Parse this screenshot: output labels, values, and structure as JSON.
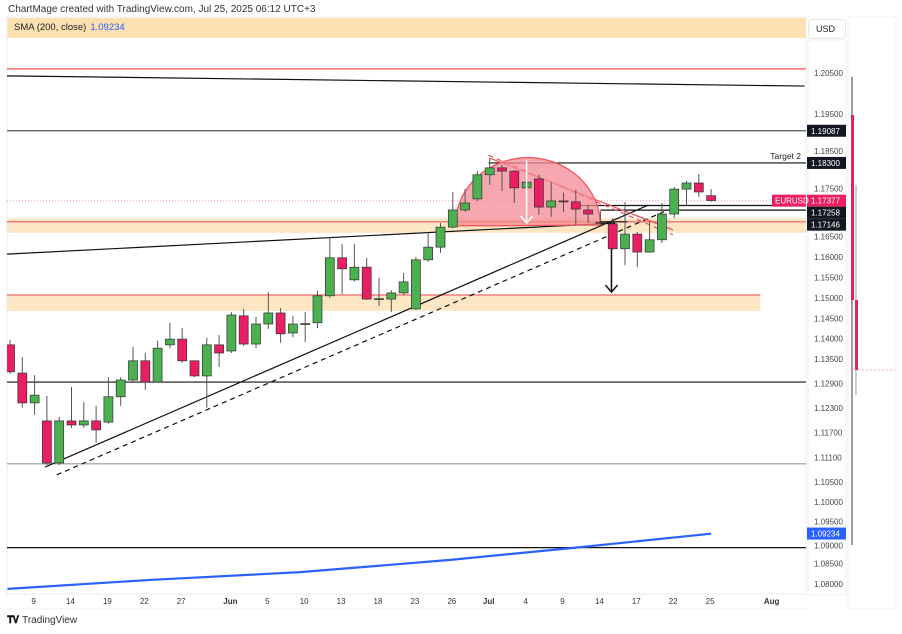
{
  "header": {
    "credit": "ChartMage created with TradingView.com, Jul 25, 2025 06:12 UTC+3",
    "indicator_label": "SMA (200, close)",
    "indicator_value": "1.09234",
    "currency": "USD"
  },
  "footer": {
    "brand": "TradingView",
    "logo": "TV"
  },
  "colors": {
    "up": "#4caf50",
    "down": "#e91e63",
    "sma": "#2962ff",
    "zone": "#fde6c4",
    "zone_line": "#f07f7f",
    "cup": "#f48a96",
    "price_tag": "#e91e63"
  },
  "chart_data": {
    "type": "candlestick",
    "symbol": "EURUSD",
    "ylim": [
      1.0775,
      1.2125
    ],
    "y_ticks": [
      "1.20500",
      "1.19500",
      "1.18500",
      "1.17500",
      "1.16500",
      "1.16000",
      "1.15500",
      "1.15000",
      "1.14500",
      "1.14000",
      "1.13500",
      "1.12900",
      "1.12300",
      "1.11700",
      "1.11100",
      "1.10500",
      "1.10000",
      "1.09500",
      "1.09000",
      "1.08500",
      "1.08000"
    ],
    "x_ticks": [
      {
        "label": "9",
        "bar": 2
      },
      {
        "label": "14",
        "bar": 5
      },
      {
        "label": "19",
        "bar": 8
      },
      {
        "label": "22",
        "bar": 11
      },
      {
        "label": "27",
        "bar": 14
      },
      {
        "label": "Jun",
        "bar": 18,
        "bold": true
      },
      {
        "label": "5",
        "bar": 21
      },
      {
        "label": "10",
        "bar": 24
      },
      {
        "label": "13",
        "bar": 27
      },
      {
        "label": "18",
        "bar": 30
      },
      {
        "label": "23",
        "bar": 33
      },
      {
        "label": "26",
        "bar": 36
      },
      {
        "label": "Jul",
        "bar": 39,
        "bold": true
      },
      {
        "label": "4",
        "bar": 42
      },
      {
        "label": "9",
        "bar": 45
      },
      {
        "label": "14",
        "bar": 48
      },
      {
        "label": "17",
        "bar": 51
      },
      {
        "label": "22",
        "bar": 54
      },
      {
        "label": "25",
        "bar": 57
      },
      {
        "label": "Aug",
        "bar": 62,
        "bold": true
      }
    ],
    "candles_ohlc": [
      [
        1.1385,
        1.1397,
        1.1314,
        1.1319
      ],
      [
        1.1316,
        1.1355,
        1.1231,
        1.1243
      ],
      [
        1.1243,
        1.1311,
        1.1214,
        1.1262
      ],
      [
        1.1199,
        1.126,
        1.1091,
        1.1096
      ],
      [
        1.1096,
        1.1209,
        1.1091,
        1.1199
      ],
      [
        1.1199,
        1.1282,
        1.1182,
        1.1189
      ],
      [
        1.1189,
        1.1245,
        1.1182,
        1.1199
      ],
      [
        1.1199,
        1.1236,
        1.1145,
        1.1177
      ],
      [
        1.1196,
        1.1306,
        1.1192,
        1.1258
      ],
      [
        1.1258,
        1.1306,
        1.1236,
        1.1299
      ],
      [
        1.1299,
        1.138,
        1.1294,
        1.1346
      ],
      [
        1.1346,
        1.1365,
        1.1275,
        1.1294
      ],
      [
        1.1294,
        1.1395,
        1.1294,
        1.1377
      ],
      [
        1.1385,
        1.1439,
        1.1377,
        1.1399
      ],
      [
        1.1399,
        1.1426,
        1.1341,
        1.1346
      ],
      [
        1.1346,
        1.1346,
        1.1306,
        1.1309
      ],
      [
        1.1309,
        1.1402,
        1.1231,
        1.1385
      ],
      [
        1.1385,
        1.1409,
        1.1331,
        1.1365
      ],
      [
        1.137,
        1.1465,
        1.1365,
        1.1458
      ],
      [
        1.1456,
        1.1473,
        1.1382,
        1.1387
      ],
      [
        1.1387,
        1.1453,
        1.1377,
        1.1436
      ],
      [
        1.1436,
        1.1514,
        1.1424,
        1.1463
      ],
      [
        1.1463,
        1.1475,
        1.139,
        1.1412
      ],
      [
        1.1414,
        1.1456,
        1.1404,
        1.1436
      ],
      [
        1.1436,
        1.1465,
        1.1392,
        1.1437
      ],
      [
        1.1439,
        1.1517,
        1.1426,
        1.1505
      ],
      [
        1.1505,
        1.1649,
        1.15,
        1.1598
      ],
      [
        1.1598,
        1.1632,
        1.1509,
        1.1571
      ],
      [
        1.1544,
        1.1632,
        1.154,
        1.1575
      ],
      [
        1.1575,
        1.1598,
        1.1495,
        1.1497
      ],
      [
        1.1497,
        1.1549,
        1.148,
        1.1498
      ],
      [
        1.1497,
        1.1519,
        1.1465,
        1.1512
      ],
      [
        1.1512,
        1.1561,
        1.1507,
        1.1539
      ],
      [
        1.1473,
        1.16,
        1.147,
        1.1593
      ],
      [
        1.1593,
        1.1659,
        1.1588,
        1.1624
      ],
      [
        1.1624,
        1.1683,
        1.161,
        1.1673
      ],
      [
        1.1673,
        1.1759,
        1.167,
        1.1715
      ],
      [
        1.1715,
        1.1766,
        1.171,
        1.1732
      ],
      [
        1.1742,
        1.181,
        1.1737,
        1.1801
      ],
      [
        1.1801,
        1.1842,
        1.1776,
        1.1818
      ],
      [
        1.1818,
        1.1825,
        1.1761,
        1.181
      ],
      [
        1.181,
        1.1812,
        1.1732,
        1.1769
      ],
      [
        1.1769,
        1.1806,
        1.1764,
        1.1783
      ],
      [
        1.1791,
        1.1801,
        1.1703,
        1.1722
      ],
      [
        1.1722,
        1.1783,
        1.1698,
        1.1737
      ],
      [
        1.1737,
        1.1757,
        1.171,
        1.1735
      ],
      [
        1.1735,
        1.1764,
        1.1678,
        1.1717
      ],
      [
        1.1715,
        1.1727,
        1.1683,
        1.1705
      ],
      [
        1.1685,
        1.1712,
        1.1678,
        1.1683
      ],
      [
        1.1681,
        1.1695,
        1.1618,
        1.162
      ],
      [
        1.162,
        1.1734,
        1.158,
        1.1656
      ],
      [
        1.1656,
        1.1661,
        1.1575,
        1.1612
      ],
      [
        1.1612,
        1.1686,
        1.161,
        1.1642
      ],
      [
        1.1642,
        1.1732,
        1.1634,
        1.1705
      ],
      [
        1.1705,
        1.1771,
        1.1695,
        1.1766
      ],
      [
        1.1766,
        1.1786,
        1.1727,
        1.1781
      ],
      [
        1.1781,
        1.1803,
        1.1747,
        1.1759
      ],
      [
        1.175,
        1.1766,
        1.1735,
        1.1738
      ]
    ],
    "sma_200": [
      [
        -0.2,
        1.0788
      ],
      [
        11.4,
        1.081
      ],
      [
        23.6,
        1.0829
      ],
      [
        35.8,
        1.0859
      ],
      [
        46,
        1.0889
      ],
      [
        57,
        1.0923
      ]
    ],
    "drawings": {
      "hlines": [
        {
          "name": "resistance-red-line",
          "price": 1.206,
          "color": "#f0505a",
          "from": -1
        },
        {
          "name": "level-1-19087-line",
          "price": 1.19087,
          "color": "#555",
          "from": -1
        },
        {
          "name": "target-2-line",
          "price": 1.183,
          "color": "#111",
          "from": 38.9
        },
        {
          "name": "level-1-17258-line",
          "price": 1.17258,
          "color": "#111",
          "from": 45.9
        },
        {
          "name": "level-1-17146-line",
          "price": 1.17146,
          "color": "#111",
          "from": 48
        },
        {
          "name": "support-1-129-line",
          "price": 1.1294,
          "color": "#111",
          "from": -1
        },
        {
          "name": "low-1-111-line",
          "price": 1.1094,
          "color": "#9598a1",
          "from": -1
        },
        {
          "name": "support-1-09-line",
          "price": 1.0889,
          "color": "#111",
          "from": -1
        }
      ],
      "zones": [
        {
          "name": "supply-zone-upper",
          "top": 1.1695,
          "bottom": 1.1659,
          "line": 1.1686,
          "to": 66
        },
        {
          "name": "demand-zone-lower",
          "top": 1.1507,
          "bottom": 1.1468,
          "line": 1.1507,
          "to": 61
        }
      ],
      "trendlines": [
        {
          "name": "sloped-resistance-line",
          "from": [
            -0.24,
            1.2043
          ],
          "to": [
            64.6,
            1.2018
          ],
          "color": "#111",
          "dash": false
        },
        {
          "name": "rising-trendline",
          "from": [
            2.85,
            1.1086
          ],
          "to": [
            51.9,
            1.1727
          ],
          "color": "#111",
          "dash": false
        },
        {
          "name": "rising-trendline-dashed",
          "from": [
            3.8,
            1.1067
          ],
          "to": [
            53.5,
            1.1715
          ],
          "color": "#111",
          "dash": true
        },
        {
          "name": "neckline",
          "from": [
            -0.24,
            1.1607
          ],
          "to": [
            49.2,
            1.1683
          ],
          "color": "#111",
          "dash": false
        },
        {
          "name": "falling-channel-upper",
          "from": [
            38.9,
            1.1849
          ],
          "to": [
            53.9,
            1.1654
          ],
          "color": "#f0505a",
          "dash": true
        },
        {
          "name": "falling-channel-lower",
          "from": [
            39.0,
            1.1842
          ],
          "to": [
            53.9,
            1.1666
          ],
          "color": "#f0505a",
          "dash": false
        },
        {
          "name": "break-marker",
          "from": [
            48,
            1.1686
          ],
          "to": [
            50.2,
            1.1686
          ],
          "color": "#111",
          "dash": false
        }
      ],
      "cup": {
        "start": [
          36.2,
          1.1676
        ],
        "peak": [
          42,
          1.1842
        ],
        "end": [
          48,
          1.1678
        ]
      },
      "arrows": [
        {
          "name": "white-down-arrow",
          "bar": 42,
          "from": 1.1836,
          "to": 1.1683,
          "color": "#ffffff"
        },
        {
          "name": "black-down-arrow",
          "bar": 48.9,
          "from": 1.162,
          "to": 1.1514,
          "color": "#111"
        }
      ],
      "target_label": "Target 2"
    },
    "price_tags": [
      {
        "name": "tag-1-19087",
        "price": 1.19087,
        "text": "1.19087",
        "bg": "#131722"
      },
      {
        "name": "tag-target-2",
        "price": 1.183,
        "text": "1.18300",
        "bg": "#131722"
      },
      {
        "name": "tag-current-price",
        "price": 1.17377,
        "text": "1.17377",
        "bg": "#e91e63",
        "symbol": "EURUSD"
      },
      {
        "name": "tag-1-17258",
        "price": 1.17258,
        "text": "1.17258",
        "bg": "#131722"
      },
      {
        "name": "tag-1-17146",
        "price": 1.17146,
        "text": "1.17146",
        "bg": "#131722"
      },
      {
        "name": "tag-sma",
        "price": 1.09234,
        "text": "1.09234",
        "bg": "#2962ff"
      }
    ],
    "current_price": 1.17377
  }
}
